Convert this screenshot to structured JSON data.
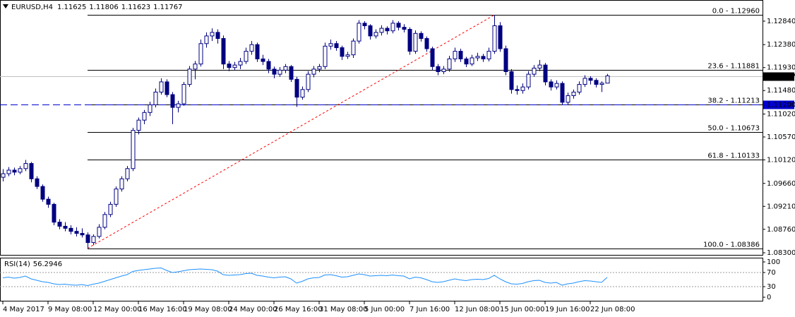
{
  "chart_data": [
    {
      "type": "candlestick",
      "title": "EURUSD,H4",
      "up_color": "#ffffff",
      "down_color": "#000080",
      "wick_color": "#000080",
      "ylim": [
        1.08245,
        1.13144
      ],
      "yticks": [
        {
          "value": 1.1284,
          "label": "1.12840"
        },
        {
          "value": 1.1238,
          "label": "1.12380"
        },
        {
          "value": 1.1193,
          "label": "1.11930"
        },
        {
          "value": 1.1148,
          "label": "1.11480"
        },
        {
          "value": 1.1102,
          "label": "1.11020"
        },
        {
          "value": 1.1057,
          "label": "1.10570"
        },
        {
          "value": 1.1012,
          "label": "1.10120"
        },
        {
          "value": 1.0966,
          "label": "1.09660"
        },
        {
          "value": 1.0921,
          "label": "1.09210"
        },
        {
          "value": 1.0876,
          "label": "1.08760"
        },
        {
          "value": 1.083,
          "label": "1.08300"
        }
      ],
      "xticks": [
        {
          "value": 0,
          "label": "4 May 2017"
        },
        {
          "value": 8,
          "label": "9 May 08:00"
        },
        {
          "value": 16,
          "label": "12 May 00:00"
        },
        {
          "value": 24,
          "label": "16 May 16:00"
        },
        {
          "value": 32,
          "label": "19 May 08:00"
        },
        {
          "value": 40,
          "label": "24 May 00:00"
        },
        {
          "value": 48,
          "label": "26 May 16:00"
        },
        {
          "value": 56,
          "label": "31 May 08:00"
        },
        {
          "value": 64,
          "label": "5 Jun 00:00"
        },
        {
          "value": 72,
          "label": "7 Jun 16:00"
        },
        {
          "value": 80,
          "label": "12 Jun 08:00"
        },
        {
          "value": 88,
          "label": "15 Jun 00:00"
        },
        {
          "value": 96,
          "label": "19 Jun 16:00"
        },
        {
          "value": 104,
          "label": "22 Jun 08:00"
        }
      ],
      "fib_levels": [
        {
          "value": 1.1296,
          "label": "0.0 - 1.12960"
        },
        {
          "value": 1.11881,
          "label": "23.6 - 1.11881"
        },
        {
          "value": 1.11213,
          "label": "38.2 - 1.11213"
        },
        {
          "value": 1.10673,
          "label": "50.0 - 1.10673"
        },
        {
          "value": 1.10133,
          "label": "61.8 - 1.10133"
        },
        {
          "value": 1.08386,
          "label": "100.0 - 1.08386"
        }
      ],
      "fib_color": "#000000",
      "trendline_color": "#ff0000",
      "price_lines": [
        {
          "value": 1.11767,
          "label": "1.11767",
          "color": "#c0c0c0",
          "style": "solid"
        },
        {
          "value": 1.112,
          "label": "1.11200",
          "color": "#0000cd",
          "style": "dashed"
        }
      ],
      "candles": [
        [
          1.0978,
          1.0994,
          1.097,
          1.0985
        ],
        [
          1.0985,
          1.0998,
          1.098,
          1.0992
        ],
        [
          1.0992,
          1.0997,
          1.0982,
          1.0988
        ],
        [
          1.0988,
          1.1,
          1.0984,
          1.0995
        ],
        [
          1.0995,
          1.1012,
          1.099,
          1.1005
        ],
        [
          1.1005,
          1.1008,
          1.0968,
          1.0975
        ],
        [
          1.0975,
          1.098,
          1.0955,
          1.096
        ],
        [
          1.096,
          1.0964,
          1.093,
          1.0935
        ],
        [
          1.0935,
          1.094,
          1.0918,
          1.0925
        ],
        [
          1.0925,
          1.0928,
          1.0884,
          1.089
        ],
        [
          1.089,
          1.0896,
          1.0876,
          1.0882
        ],
        [
          1.0882,
          1.089,
          1.0872,
          1.0878
        ],
        [
          1.0878,
          1.0884,
          1.0866,
          1.0872
        ],
        [
          1.0872,
          1.088,
          1.0862,
          1.0868
        ],
        [
          1.0868,
          1.0878,
          1.086,
          1.0865
        ],
        [
          1.0865,
          1.087,
          1.08386,
          1.085
        ],
        [
          1.085,
          1.0866,
          1.0845,
          1.0862
        ],
        [
          1.0862,
          1.0886,
          1.0858,
          1.088
        ],
        [
          1.088,
          1.091,
          1.0876,
          1.0905
        ],
        [
          1.0905,
          1.093,
          1.09,
          1.0925
        ],
        [
          1.0925,
          1.096,
          1.092,
          1.0955
        ],
        [
          1.0955,
          1.098,
          1.095,
          1.0975
        ],
        [
          1.0975,
          1.1,
          1.097,
          1.0995
        ],
        [
          1.0995,
          1.1075,
          1.099,
          1.107
        ],
        [
          1.107,
          1.1095,
          1.1062,
          1.109
        ],
        [
          1.109,
          1.111,
          1.1082,
          1.1105
        ],
        [
          1.1105,
          1.1126,
          1.1098,
          1.112
        ],
        [
          1.112,
          1.1152,
          1.1115,
          1.1145
        ],
        [
          1.1145,
          1.1172,
          1.114,
          1.1165
        ],
        [
          1.1165,
          1.117,
          1.1135,
          1.114
        ],
        [
          1.114,
          1.1145,
          1.1082,
          1.1115
        ],
        [
          1.1115,
          1.1128,
          1.1105,
          1.1122
        ],
        [
          1.1122,
          1.1165,
          1.1118,
          1.116
        ],
        [
          1.116,
          1.1196,
          1.1155,
          1.119
        ],
        [
          1.119,
          1.1206,
          1.117,
          1.12
        ],
        [
          1.12,
          1.1248,
          1.1195,
          1.124
        ],
        [
          1.124,
          1.1262,
          1.1232,
          1.1255
        ],
        [
          1.1255,
          1.127,
          1.1245,
          1.1262
        ],
        [
          1.1262,
          1.1268,
          1.124,
          1.125
        ],
        [
          1.125,
          1.1256,
          1.119,
          1.12
        ],
        [
          1.12,
          1.1206,
          1.1186,
          1.1193
        ],
        [
          1.1193,
          1.1204,
          1.1188,
          1.1198
        ],
        [
          1.1198,
          1.1212,
          1.119,
          1.1205
        ],
        [
          1.1205,
          1.1232,
          1.12,
          1.1225
        ],
        [
          1.1225,
          1.1245,
          1.1218,
          1.1238
        ],
        [
          1.1238,
          1.1242,
          1.1204,
          1.121
        ],
        [
          1.121,
          1.1218,
          1.1198,
          1.1205
        ],
        [
          1.1205,
          1.121,
          1.1182,
          1.119
        ],
        [
          1.119,
          1.1195,
          1.1172,
          1.118
        ],
        [
          1.118,
          1.1194,
          1.1175,
          1.1188
        ],
        [
          1.1188,
          1.12,
          1.1182,
          1.1195
        ],
        [
          1.1195,
          1.1198,
          1.1165,
          1.117
        ],
        [
          1.117,
          1.1175,
          1.1116,
          1.1135
        ],
        [
          1.1135,
          1.1156,
          1.113,
          1.115
        ],
        [
          1.115,
          1.1186,
          1.1145,
          1.118
        ],
        [
          1.118,
          1.1196,
          1.1174,
          1.119
        ],
        [
          1.119,
          1.12,
          1.1184,
          1.1195
        ],
        [
          1.1195,
          1.1242,
          1.119,
          1.1235
        ],
        [
          1.1235,
          1.1248,
          1.1228,
          1.124
        ],
        [
          1.124,
          1.1245,
          1.1226,
          1.1232
        ],
        [
          1.1232,
          1.1236,
          1.1208,
          1.1215
        ],
        [
          1.1215,
          1.1224,
          1.121,
          1.1218
        ],
        [
          1.1218,
          1.125,
          1.1212,
          1.1245
        ],
        [
          1.1245,
          1.1286,
          1.124,
          1.128
        ],
        [
          1.128,
          1.1284,
          1.1268,
          1.1275
        ],
        [
          1.1275,
          1.1278,
          1.1248,
          1.1255
        ],
        [
          1.1255,
          1.1268,
          1.125,
          1.1262
        ],
        [
          1.1262,
          1.1276,
          1.1256,
          1.127
        ],
        [
          1.127,
          1.1274,
          1.1258,
          1.1265
        ],
        [
          1.1265,
          1.1286,
          1.126,
          1.128
        ],
        [
          1.128,
          1.1284,
          1.1266,
          1.1272
        ],
        [
          1.1272,
          1.1278,
          1.1262,
          1.1268
        ],
        [
          1.1268,
          1.1272,
          1.1218,
          1.1225
        ],
        [
          1.1225,
          1.1266,
          1.122,
          1.126
        ],
        [
          1.126,
          1.1264,
          1.1244,
          1.125
        ],
        [
          1.125,
          1.1254,
          1.1224,
          1.123
        ],
        [
          1.123,
          1.1234,
          1.1188,
          1.1195
        ],
        [
          1.1195,
          1.12,
          1.1178,
          1.1185
        ],
        [
          1.1185,
          1.1196,
          1.118,
          1.119
        ],
        [
          1.119,
          1.1216,
          1.1185,
          1.121
        ],
        [
          1.121,
          1.1232,
          1.1204,
          1.1225
        ],
        [
          1.1225,
          1.123,
          1.1204,
          1.121
        ],
        [
          1.121,
          1.1214,
          1.1194,
          1.12
        ],
        [
          1.12,
          1.1218,
          1.1196,
          1.1212
        ],
        [
          1.1212,
          1.1222,
          1.1206,
          1.1215
        ],
        [
          1.1215,
          1.122,
          1.1204,
          1.121
        ],
        [
          1.121,
          1.1232,
          1.1205,
          1.1225
        ],
        [
          1.1225,
          1.1296,
          1.122,
          1.1275
        ],
        [
          1.1275,
          1.1282,
          1.1224,
          1.123
        ],
        [
          1.123,
          1.1236,
          1.1178,
          1.1185
        ],
        [
          1.1185,
          1.119,
          1.1142,
          1.115
        ],
        [
          1.115,
          1.1158,
          1.114,
          1.1148
        ],
        [
          1.1148,
          1.1162,
          1.1142,
          1.1155
        ],
        [
          1.1155,
          1.1186,
          1.115,
          1.118
        ],
        [
          1.118,
          1.1198,
          1.1175,
          1.1192
        ],
        [
          1.1192,
          1.1208,
          1.1186,
          1.1198
        ],
        [
          1.1198,
          1.1202,
          1.1158,
          1.1165
        ],
        [
          1.1165,
          1.117,
          1.1148,
          1.1155
        ],
        [
          1.1155,
          1.1168,
          1.115,
          1.1162
        ],
        [
          1.1162,
          1.1166,
          1.112,
          1.1125
        ],
        [
          1.1125,
          1.1144,
          1.112,
          1.1138
        ],
        [
          1.1138,
          1.115,
          1.1132,
          1.1145
        ],
        [
          1.1145,
          1.1166,
          1.114,
          1.116
        ],
        [
          1.116,
          1.1178,
          1.1155,
          1.1172
        ],
        [
          1.1172,
          1.1176,
          1.116,
          1.1168
        ],
        [
          1.1168,
          1.1172,
          1.1154,
          1.116
        ],
        [
          1.116,
          1.1166,
          1.1145,
          1.11625
        ],
        [
          1.11625,
          1.11806,
          1.11623,
          1.11767
        ]
      ]
    },
    {
      "type": "line",
      "title": "RSI(14)",
      "color": "#1e90ff",
      "ylim": [
        0,
        100
      ],
      "yticks": [
        100,
        70,
        30,
        0
      ],
      "values": [
        55,
        57,
        54,
        56,
        60,
        52,
        48,
        44,
        42,
        38,
        36,
        37,
        35,
        34,
        36,
        33,
        37,
        40,
        45,
        50,
        55,
        60,
        64,
        73,
        76,
        78,
        80,
        82,
        83,
        76,
        70,
        72,
        75,
        78,
        79,
        80,
        79,
        78,
        74,
        64,
        62,
        63,
        64,
        67,
        68,
        62,
        60,
        57,
        55,
        57,
        58,
        52,
        40,
        45,
        52,
        55,
        56,
        63,
        64,
        61,
        57,
        58,
        62,
        66,
        64,
        60,
        61,
        62,
        61,
        63,
        61,
        60,
        52,
        57,
        55,
        50,
        44,
        42,
        44,
        48,
        52,
        49,
        47,
        50,
        51,
        50,
        53,
        62,
        52,
        44,
        38,
        37,
        39,
        44,
        47,
        48,
        42,
        40,
        42,
        34,
        38,
        40,
        44,
        47,
        46,
        44,
        42,
        56.2946
      ]
    }
  ]
}
